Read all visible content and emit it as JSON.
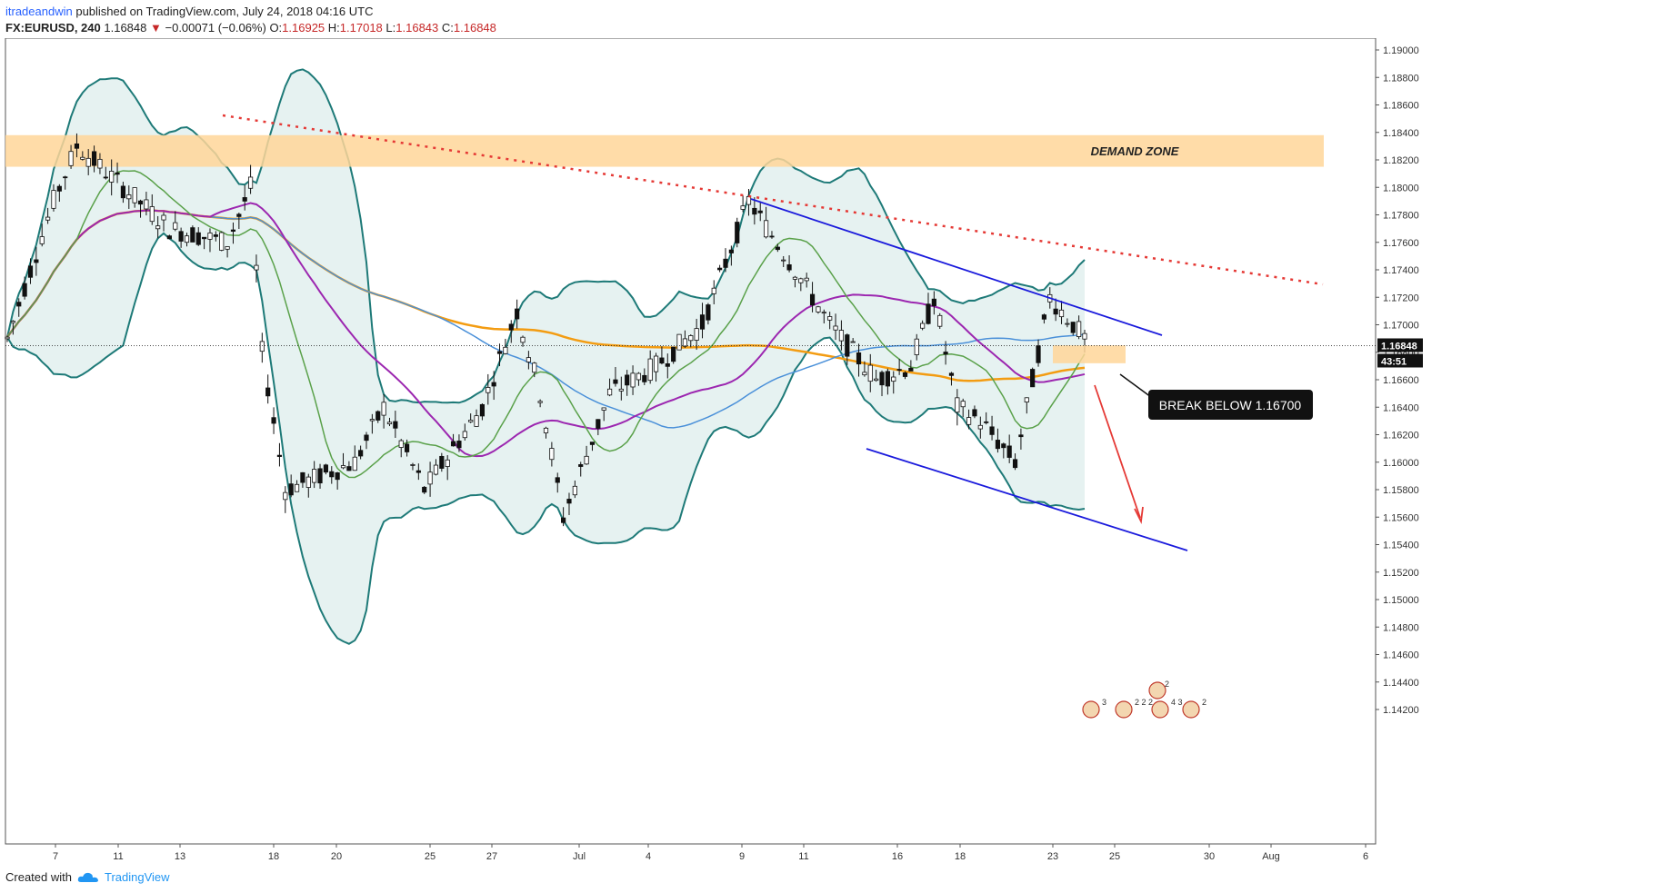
{
  "header": {
    "author": "itradeandwin",
    "published_text": "published on TradingView.com, July 24, 2018 04:16 UTC"
  },
  "symbol": {
    "name": "FX:EURUSD, 240",
    "last": "1.16848",
    "change_arrow": "▼",
    "change": "−0.00071 (−0.06%)",
    "ohlc": {
      "o_label": "O:",
      "o": "1.16925",
      "h_label": "H:",
      "h": "1.17018",
      "l_label": "L:",
      "l": "1.16843",
      "c_label": "C:",
      "c": "1.16848"
    }
  },
  "footer": {
    "created_with": "Created with",
    "brand": "TradingView",
    "brand_icon": "tradingview-cloud-icon"
  },
  "colors": {
    "orange_ma": "#f39c12",
    "purple_ma": "#9c27b0",
    "blue_ma": "#4a90d9",
    "green_ma": "#5aa14a",
    "bollinger": "#1e7a78",
    "bollinger_fill": "#e6f2f1",
    "trendline": "#1a1adc",
    "red_dotted": "#e53935",
    "zone": "#ffd699",
    "arrow": "#e53935"
  },
  "chart_data": {
    "type": "candlestick",
    "symbol": "FX:EURUSD",
    "interval": "240",
    "y_axis": {
      "ticks": [
        "1.19000",
        "1.18800",
        "1.18600",
        "1.18400",
        "1.18200",
        "1.18000",
        "1.17800",
        "1.17600",
        "1.17400",
        "1.17200",
        "1.17000",
        "1.16800",
        "1.16600",
        "1.16400",
        "1.16200",
        "1.16000",
        "1.15800",
        "1.15600",
        "1.15400",
        "1.15200",
        "1.15000",
        "1.14800",
        "1.14600",
        "1.14400",
        "1.14200"
      ],
      "range": [
        1.141,
        1.1915
      ],
      "last_price_label": "1.16848",
      "countdown_label": "43:51"
    },
    "x_axis": {
      "ticks": [
        "7",
        "11",
        "13",
        "18",
        "20",
        "25",
        "27",
        "Jul",
        "4",
        "9",
        "11",
        "16",
        "18",
        "23",
        "25",
        "30",
        "Aug",
        "6"
      ]
    },
    "annotations": {
      "demand_zone": {
        "label": "DEMAND ZONE",
        "price_range": [
          1.1815,
          1.1838
        ]
      },
      "small_zone": {
        "price_range": [
          1.1672,
          1.1685
        ]
      },
      "callout": {
        "text": "BREAK BELOW 1.16700"
      }
    },
    "event_markers": [
      "3",
      "2 2 2",
      "4 3",
      "2",
      "2"
    ]
  }
}
